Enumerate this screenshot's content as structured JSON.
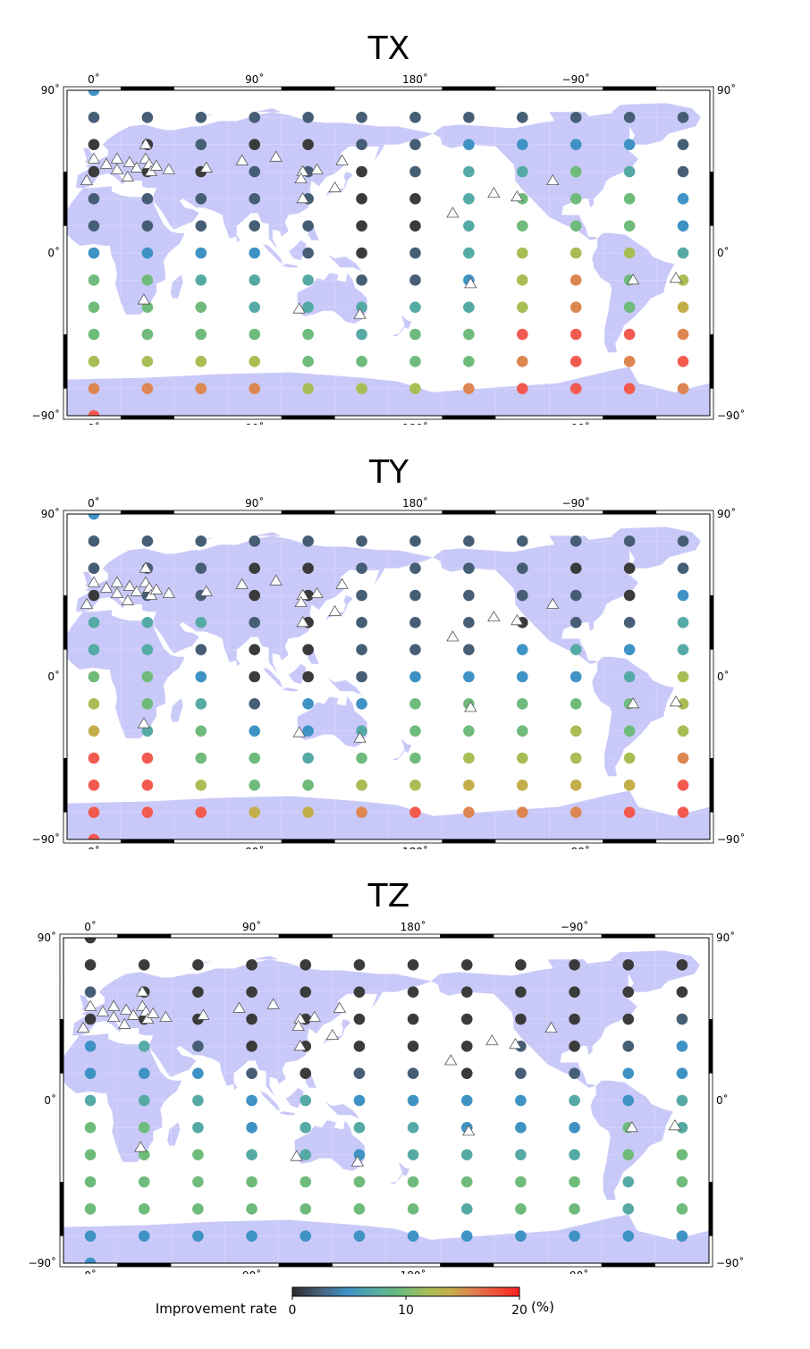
{
  "panels": [
    {
      "title": "TX",
      "rows": [
        "B",
        "DDDDDDDDDDDD",
        "KKDKKDDBBBBD",
        "KKKDDKDTTGTD",
        "DDDDDKKTGGGB",
        "DDDDDKKTGGGB",
        "BBBBDKDTYYYT",
        "GGTTTDDBYOGY",
        "GGGTTTTTYOGM",
        "GGGGGTGGRRRO",
        "YYYYGGGGOROR",
        "OOOOYYYORRRO",
        "R"
      ]
    },
    {
      "title": "TY",
      "rows": [
        "B",
        "DDDDDDDDDDDD",
        "DDDKKDDDDKKD",
        "KDDKKDDDDDKB",
        "TTTDKDDDKDDT",
        "TTDKKDDDBTBT",
        "GGBKKDBBBBTY",
        "YGTDBBGGGGGY",
        "MTGBBTGGGYGY",
        "RRGGTGGYYYYO",
        "RRYGGYYMMMMR",
        "RRRMMOROOORR",
        "R"
      ]
    },
    {
      "title": "TZ",
      "rows": [
        "K",
        "KKKKKKKKKKKK",
        "DKKKKKKKKKKK",
        "KKKKKKKKKKKD",
        "BTDKKKKKDKDB",
        "BBBDKDDKDDBB",
        "TTTBTBBBBTBT",
        "GGTBTTTBBBGT",
        "GGGTTBTTTTGG",
        "GGGGGGGGGGTG",
        "GGGGGGGTGGTG",
        "BBBBBBBBBBBB",
        "B"
      ]
    }
  ],
  "axes": {
    "x_ticks": [
      "0˚",
      "90˚",
      "180˚",
      "−90˚"
    ],
    "y_ticks": [
      "90˚",
      "0˚",
      "−90˚"
    ]
  },
  "stations_deg": [
    [
      0,
      52
    ],
    [
      -4,
      40
    ],
    [
      7,
      49
    ],
    [
      13,
      52
    ],
    [
      13,
      46
    ],
    [
      20,
      50
    ],
    [
      19,
      42
    ],
    [
      24,
      47
    ],
    [
      29,
      52
    ],
    [
      31,
      49
    ],
    [
      29,
      60
    ],
    [
      32,
      45
    ],
    [
      35,
      48
    ],
    [
      42,
      46
    ],
    [
      63,
      47
    ],
    [
      83,
      51
    ],
    [
      102,
      53
    ],
    [
      117,
      45
    ],
    [
      125,
      46
    ],
    [
      139,
      51
    ],
    [
      117,
      30
    ],
    [
      135,
      36
    ],
    [
      116,
      41
    ],
    [
      -159,
      22
    ],
    [
      -136,
      33
    ],
    [
      -123,
      31
    ],
    [
      -103,
      40
    ],
    [
      28,
      -26
    ],
    [
      115,
      -31
    ],
    [
      149,
      -34
    ],
    [
      -149,
      -17
    ],
    [
      -58,
      -15
    ],
    [
      -34,
      -14
    ]
  ],
  "colors": {
    "K": "#3b3b3b",
    "D": "#465e75",
    "B": "#3f92c4",
    "T": "#56aaa5",
    "G": "#6fbb7b",
    "Y": "#a9bd55",
    "M": "#c4ae4a",
    "O": "#dc8651",
    "R": "#f25a50",
    "land": "#c9c9f9",
    "station_fill": "#ffffff",
    "station_stroke": "#555555"
  },
  "legend": {
    "label": "Improvement rate",
    "ticks": [
      "0",
      "10",
      "20"
    ],
    "unit": "(%)",
    "range": [
      0,
      20
    ]
  }
}
